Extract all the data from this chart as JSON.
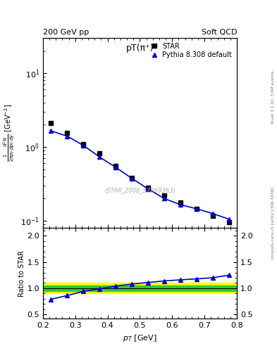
{
  "title_main": "pT(π⁺)",
  "header_left": "200 GeV pp",
  "header_right": "Soft QCD",
  "ylabel_ratio": "Ratio to STAR",
  "xlabel": "p_{T} [GeV]",
  "watermark": "(STAR_2008_S7869363)",
  "right_label": "Rivet 3.1.10, 3.6M events",
  "right_label2": "mcplots.cern.ch [arXiv:1306.3436]",
  "star_pt": [
    0.225,
    0.275,
    0.325,
    0.375,
    0.425,
    0.475,
    0.525,
    0.575,
    0.625,
    0.675,
    0.725,
    0.775
  ],
  "star_val": [
    2.1,
    1.55,
    1.1,
    0.82,
    0.55,
    0.38,
    0.28,
    0.22,
    0.175,
    0.145,
    0.115,
    0.095
  ],
  "pythia_pt": [
    0.225,
    0.275,
    0.325,
    0.375,
    0.425,
    0.475,
    0.525,
    0.575,
    0.625,
    0.675,
    0.725,
    0.775
  ],
  "pythia_val": [
    1.65,
    1.4,
    1.05,
    0.73,
    0.53,
    0.375,
    0.27,
    0.2,
    0.165,
    0.145,
    0.125,
    0.105
  ],
  "ratio_pt": [
    0.225,
    0.275,
    0.325,
    0.375,
    0.425,
    0.475,
    0.525,
    0.575,
    0.625,
    0.675,
    0.725,
    0.775
  ],
  "ratio_val": [
    0.79,
    0.86,
    0.94,
    0.99,
    1.04,
    1.08,
    1.11,
    1.14,
    1.16,
    1.18,
    1.2,
    1.25
  ],
  "band_yellow": [
    0.9,
    1.1
  ],
  "band_green": [
    0.95,
    1.05
  ],
  "star_color": "#000000",
  "pythia_color": "#0000cc",
  "band_yellow_color": "#ffff00",
  "band_green_color": "#33cc33",
  "xlim": [
    0.2,
    0.8
  ],
  "ylim_main_log": [
    -1.1,
    1.48
  ],
  "ylim_ratio": [
    0.42,
    2.15
  ],
  "ratio_yticks": [
    0.5,
    1.0,
    1.5,
    2.0
  ]
}
